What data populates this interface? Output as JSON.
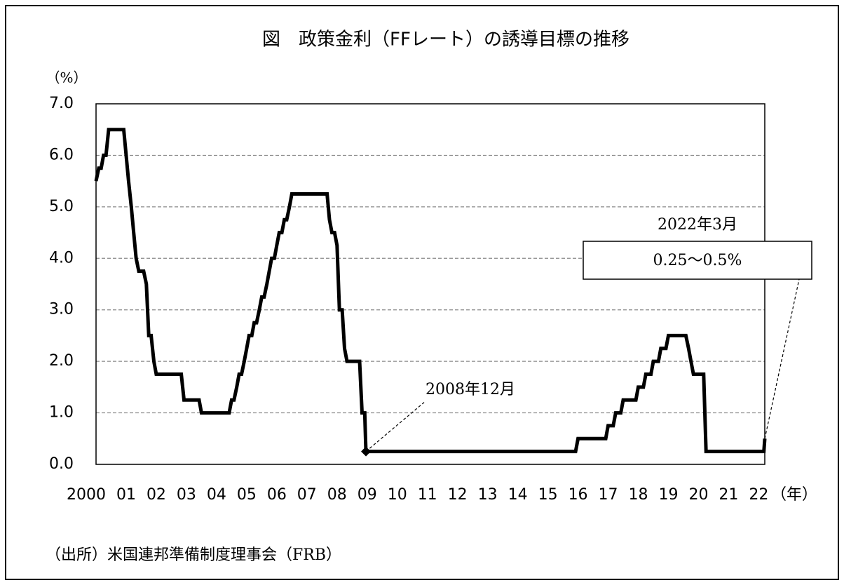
{
  "chart_data": {
    "type": "line",
    "title": "図　政策金利（FFレート）の誘導目標の推移",
    "y_unit": "（%）",
    "x_unit": "（年）",
    "source": "（出所）米国連邦準備制度理事会（FRB）",
    "xlim": [
      2000,
      2022.2
    ],
    "xticks": [
      2000,
      {
        "value": 2001,
        "label": "01"
      },
      {
        "value": 2002,
        "label": "02"
      },
      {
        "value": 2003,
        "label": "03"
      },
      {
        "value": 2004,
        "label": "04"
      },
      {
        "value": 2005,
        "label": "05"
      },
      {
        "value": 2006,
        "label": "06"
      },
      {
        "value": 2007,
        "label": "07"
      },
      {
        "value": 2008,
        "label": "08"
      },
      {
        "value": 2009,
        "label": "09"
      },
      {
        "value": 2010,
        "label": "10"
      },
      {
        "value": 2011,
        "label": "11"
      },
      {
        "value": 2012,
        "label": "12"
      },
      {
        "value": 2013,
        "label": "13"
      },
      {
        "value": 2014,
        "label": "14"
      },
      {
        "value": 2015,
        "label": "15"
      },
      {
        "value": 2016,
        "label": "16"
      },
      {
        "value": 2017,
        "label": "17"
      },
      {
        "value": 2018,
        "label": "18"
      },
      {
        "value": 2019,
        "label": "19"
      },
      {
        "value": 2020,
        "label": "20"
      },
      {
        "value": 2021,
        "label": "21"
      },
      {
        "value": 2022,
        "label": "22"
      }
    ],
    "ylim": [
      0,
      7
    ],
    "yticks": [
      {
        "value": 0,
        "label": "0.0"
      },
      {
        "value": 1,
        "label": "1.0"
      },
      {
        "value": 2,
        "label": "2.0"
      },
      {
        "value": 3,
        "label": "3.0"
      },
      {
        "value": 4,
        "label": "4.0"
      },
      {
        "value": 5,
        "label": "5.0"
      },
      {
        "value": 6,
        "label": "6.0"
      },
      {
        "value": 7,
        "label": "7.0"
      }
    ],
    "grid": true,
    "x": [
      2000.0,
      2000.09,
      2000.17,
      2000.25,
      2000.33,
      2000.42,
      2000.92,
      2001.08,
      2001.17,
      2001.25,
      2001.33,
      2001.42,
      2001.58,
      2001.67,
      2001.75,
      2001.83,
      2001.92,
      2002.0,
      2002.83,
      2002.92,
      2003.42,
      2003.5,
      2004.42,
      2004.5,
      2004.58,
      2004.67,
      2004.75,
      2004.83,
      2004.92,
      2005.0,
      2005.08,
      2005.17,
      2005.25,
      2005.33,
      2005.42,
      2005.5,
      2005.58,
      2005.67,
      2005.75,
      2005.83,
      2005.92,
      2006.0,
      2006.08,
      2006.17,
      2006.25,
      2006.33,
      2006.42,
      2006.5,
      2007.67,
      2007.75,
      2007.83,
      2007.92,
      2008.0,
      2008.08,
      2008.17,
      2008.25,
      2008.33,
      2008.75,
      2008.83,
      2008.92,
      2008.96,
      2015.92,
      2016.0,
      2016.92,
      2017.0,
      2017.17,
      2017.25,
      2017.42,
      2017.5,
      2017.92,
      2018.0,
      2018.17,
      2018.25,
      2018.42,
      2018.5,
      2018.67,
      2018.75,
      2018.92,
      2019.0,
      2019.58,
      2019.67,
      2019.75,
      2019.83,
      2020.17,
      2020.25,
      2022.17,
      2022.2
    ],
    "series": [
      {
        "color": "#000000",
        "values": [
          5.5,
          5.75,
          5.75,
          6.0,
          6.0,
          6.5,
          6.5,
          5.5,
          5.0,
          4.5,
          4.0,
          3.75,
          3.75,
          3.5,
          2.5,
          2.5,
          2.0,
          1.75,
          1.75,
          1.25,
          1.25,
          1.0,
          1.0,
          1.25,
          1.25,
          1.5,
          1.75,
          1.75,
          2.0,
          2.25,
          2.5,
          2.5,
          2.75,
          2.75,
          3.0,
          3.25,
          3.25,
          3.5,
          3.75,
          4.0,
          4.0,
          4.25,
          4.5,
          4.5,
          4.75,
          4.75,
          5.0,
          5.25,
          5.25,
          4.75,
          4.5,
          4.5,
          4.25,
          3.0,
          3.0,
          2.25,
          2.0,
          2.0,
          1.0,
          1.0,
          0.25,
          0.25,
          0.5,
          0.5,
          0.75,
          0.75,
          1.0,
          1.0,
          1.25,
          1.25,
          1.5,
          1.5,
          1.75,
          1.75,
          2.0,
          2.0,
          2.25,
          2.25,
          2.5,
          2.5,
          2.25,
          2.0,
          1.75,
          1.75,
          0.25,
          0.25,
          0.5
        ]
      }
    ],
    "annotations": [
      {
        "label": "2008年12月",
        "x": 2008.96,
        "y": 0.25
      },
      {
        "label": "2022年3月",
        "box": "0.25～0.5%",
        "x": 2022.2,
        "y": 0.5
      }
    ]
  }
}
